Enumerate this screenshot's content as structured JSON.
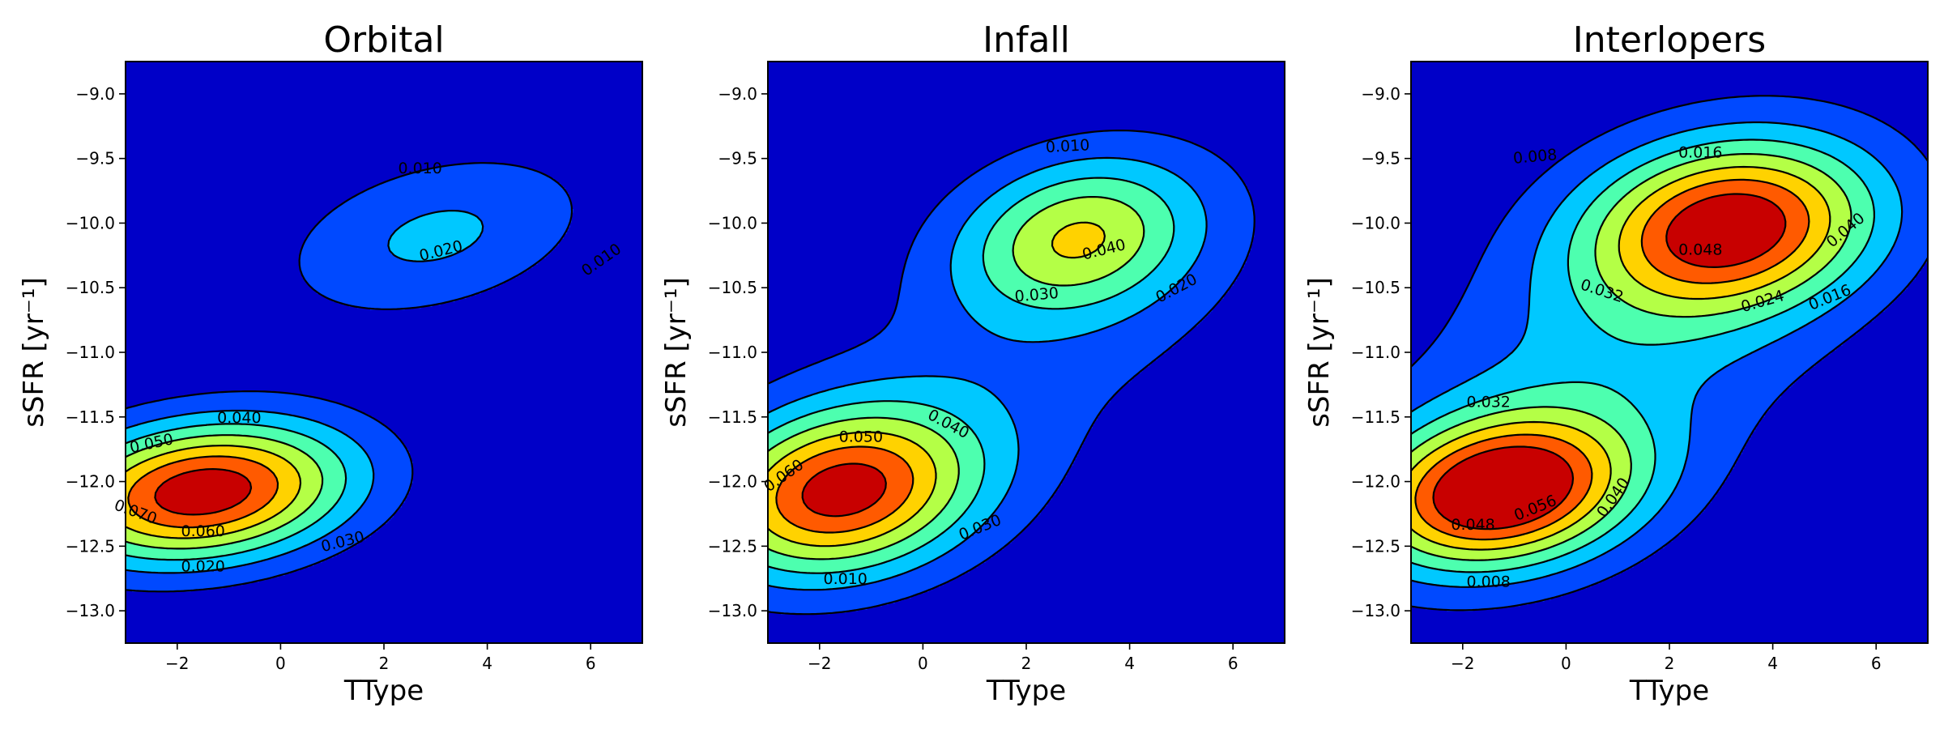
{
  "chart_data": [
    {
      "type": "contour",
      "title": "Orbital",
      "xlabel": "TType",
      "ylabel": "sSFR [yr⁻¹]",
      "xlim": [
        -3,
        7
      ],
      "ylim": [
        -13.25,
        -8.75
      ],
      "xticks": [
        -2,
        0,
        2,
        4,
        6
      ],
      "xtick_labels": [
        "−2",
        "0",
        "2",
        "4",
        "6"
      ],
      "yticks": [
        -9.0,
        -9.5,
        -10.0,
        -10.5,
        -11.0,
        -11.5,
        -12.0,
        -12.5,
        -13.0
      ],
      "ytick_labels": [
        "−9.0",
        "−9.5",
        "−10.0",
        "−10.5",
        "−11.0",
        "−11.5",
        "−12.0",
        "−12.5",
        "−13.0"
      ],
      "colormap": "jet",
      "background_color": "#0000c8",
      "levels": [
        0.01,
        0.02,
        0.03,
        0.04,
        0.05,
        0.06,
        0.07
      ],
      "level_labels": [
        {
          "text": "0.010",
          "x": 2.7,
          "y": -9.57,
          "angle": 0
        },
        {
          "text": "0.020",
          "x": 3.1,
          "y": -10.21,
          "angle": -14
        },
        {
          "text": "0.010",
          "x": 6.2,
          "y": -10.28,
          "angle": -35
        },
        {
          "text": "0.040",
          "x": -0.8,
          "y": -11.5,
          "angle": 0
        },
        {
          "text": "0.050",
          "x": -2.5,
          "y": -11.7,
          "angle": -12
        },
        {
          "text": "0.070",
          "x": -2.8,
          "y": -12.23,
          "angle": 20
        },
        {
          "text": "0.060",
          "x": -1.5,
          "y": -12.38,
          "angle": 0
        },
        {
          "text": "0.030",
          "x": 1.2,
          "y": -12.46,
          "angle": -14
        },
        {
          "text": "0.020",
          "x": -1.5,
          "y": -12.65,
          "angle": 0
        }
      ],
      "components": [
        {
          "amp": 0.078,
          "mx": -1.5,
          "my": -12.08,
          "sx": 2.0,
          "sy": 0.38,
          "rho": 0.2
        },
        {
          "amp": 0.022,
          "mx": 3.0,
          "my": -10.1,
          "sx": 2.1,
          "sy": 0.45,
          "rho": 0.35
        }
      ]
    },
    {
      "type": "contour",
      "title": "Infall",
      "xlabel": "TType",
      "ylabel": "sSFR [yr⁻¹]",
      "xlim": [
        -3,
        7
      ],
      "ylim": [
        -13.25,
        -8.75
      ],
      "xticks": [
        -2,
        0,
        2,
        4,
        6
      ],
      "xtick_labels": [
        "−2",
        "0",
        "2",
        "4",
        "6"
      ],
      "yticks": [
        -9.0,
        -9.5,
        -10.0,
        -10.5,
        -11.0,
        -11.5,
        -12.0,
        -12.5,
        -13.0
      ],
      "ytick_labels": [
        "−9.0",
        "−9.5",
        "−10.0",
        "−10.5",
        "−11.0",
        "−11.5",
        "−12.0",
        "−12.5",
        "−13.0"
      ],
      "colormap": "jet",
      "background_color": "#0000c8",
      "levels": [
        0.01,
        0.02,
        0.03,
        0.04,
        0.05,
        0.06,
        0.07
      ],
      "level_labels": [
        {
          "text": "0.010",
          "x": 2.8,
          "y": -9.4,
          "angle": -3
        },
        {
          "text": "0.040",
          "x": 3.5,
          "y": -10.2,
          "angle": -14
        },
        {
          "text": "0.030",
          "x": 2.2,
          "y": -10.55,
          "angle": -5
        },
        {
          "text": "0.020",
          "x": 4.9,
          "y": -10.5,
          "angle": -28
        },
        {
          "text": "0.050",
          "x": -1.2,
          "y": -11.65,
          "angle": 0
        },
        {
          "text": "0.040",
          "x": 0.5,
          "y": -11.55,
          "angle": 28
        },
        {
          "text": "0.060",
          "x": -2.7,
          "y": -11.95,
          "angle": -35
        },
        {
          "text": "0.030",
          "x": 1.1,
          "y": -12.35,
          "angle": -22
        },
        {
          "text": "0.010",
          "x": -1.5,
          "y": -12.75,
          "angle": 0
        }
      ],
      "components": [
        {
          "amp": 0.07,
          "mx": -1.6,
          "my": -12.08,
          "sx": 1.8,
          "sy": 0.45,
          "rho": 0.2
        },
        {
          "amp": 0.043,
          "mx": 3.0,
          "my": -10.1,
          "sx": 1.6,
          "sy": 0.42,
          "rho": 0.2
        },
        {
          "amp": 0.013,
          "mx": 2.0,
          "my": -11.0,
          "sx": 3.5,
          "sy": 1.1,
          "rho": 0.55
        }
      ]
    },
    {
      "type": "contour",
      "title": "Interlopers",
      "xlabel": "TType",
      "ylabel": "sSFR [yr⁻¹]",
      "xlim": [
        -3,
        7
      ],
      "ylim": [
        -13.25,
        -8.75
      ],
      "xticks": [
        -2,
        0,
        2,
        4,
        6
      ],
      "xtick_labels": [
        "−2",
        "0",
        "2",
        "4",
        "6"
      ],
      "yticks": [
        -9.0,
        -9.5,
        -10.0,
        -10.5,
        -11.0,
        -11.5,
        -12.0,
        -12.5,
        -13.0
      ],
      "ytick_labels": [
        "−9.0",
        "−9.5",
        "−10.0",
        "−10.5",
        "−11.0",
        "−11.5",
        "−12.0",
        "−12.5",
        "−13.0"
      ],
      "colormap": "jet",
      "background_color": "#0000c8",
      "levels": [
        0.008,
        0.016,
        0.024,
        0.032,
        0.04,
        0.048,
        0.056
      ],
      "level_labels": [
        {
          "text": "0.008",
          "x": -0.6,
          "y": -9.48,
          "angle": -5
        },
        {
          "text": "0.016",
          "x": 2.6,
          "y": -9.45,
          "angle": 0
        },
        {
          "text": "0.040",
          "x": 5.4,
          "y": -10.05,
          "angle": -40
        },
        {
          "text": "0.048",
          "x": 2.6,
          "y": -10.2,
          "angle": 0
        },
        {
          "text": "0.032",
          "x": 0.7,
          "y": -10.52,
          "angle": 18
        },
        {
          "text": "0.024",
          "x": 3.8,
          "y": -10.6,
          "angle": -16
        },
        {
          "text": "0.016",
          "x": 5.1,
          "y": -10.57,
          "angle": -22
        },
        {
          "text": "0.032",
          "x": -1.5,
          "y": -11.38,
          "angle": 0
        },
        {
          "text": "0.056",
          "x": -0.6,
          "y": -12.2,
          "angle": -22
        },
        {
          "text": "0.040",
          "x": 0.9,
          "y": -12.12,
          "angle": -55
        },
        {
          "text": "0.048",
          "x": -1.8,
          "y": -12.33,
          "angle": 0
        },
        {
          "text": "0.008",
          "x": -1.5,
          "y": -12.77,
          "angle": 0
        }
      ],
      "components": [
        {
          "amp": 0.062,
          "mx": -1.3,
          "my": -12.08,
          "sx": 1.75,
          "sy": 0.4,
          "rho": 0.2
        },
        {
          "amp": 0.054,
          "mx": 3.2,
          "my": -10.02,
          "sx": 1.9,
          "sy": 0.45,
          "rho": 0.15
        },
        {
          "amp": 0.018,
          "mx": 1.0,
          "my": -11.0,
          "sx": 3.2,
          "sy": 1.1,
          "rho": 0.5
        }
      ]
    }
  ]
}
